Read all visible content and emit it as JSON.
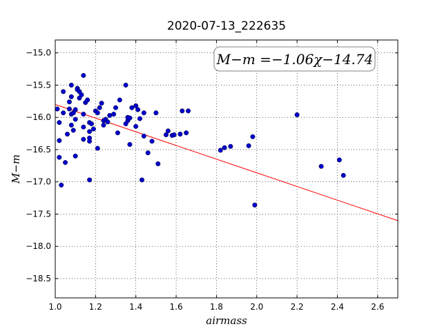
{
  "chart_data": {
    "type": "scatter",
    "title": "2020-07-13_222635",
    "xlabel": "airmass",
    "ylabel": "M−m",
    "xlim": [
      1.0,
      2.7
    ],
    "ylim": [
      -18.8,
      -14.8
    ],
    "y_inverted": true,
    "grid": true,
    "xticks": [
      1.0,
      1.2,
      1.4,
      1.6,
      1.8,
      2.0,
      2.2,
      2.4,
      2.6
    ],
    "xtick_labels": [
      "1.0",
      "1.2",
      "1.4",
      "1.6",
      "1.8",
      "2.0",
      "2.2",
      "2.4",
      "2.6"
    ],
    "yticks": [
      -15.0,
      -15.5,
      -16.0,
      -16.5,
      -17.0,
      -17.5,
      -18.0,
      -18.5
    ],
    "ytick_labels": [
      "−15.0",
      "−15.5",
      "−16.0",
      "−16.5",
      "−17.0",
      "−17.5",
      "−18.0",
      "−18.5"
    ],
    "annotation": "M−m =−1.06χ−14.74",
    "fit": {
      "slope": -1.06,
      "intercept": -14.74,
      "color": "#ff0000"
    },
    "point_color": "#0000cc",
    "points": [
      [
        1.01,
        -15.87
      ],
      [
        1.02,
        -16.08
      ],
      [
        1.02,
        -16.36
      ],
      [
        1.02,
        -16.62
      ],
      [
        1.03,
        -17.05
      ],
      [
        1.04,
        -15.6
      ],
      [
        1.04,
        -15.93
      ],
      [
        1.05,
        -16.7
      ],
      [
        1.06,
        -16.26
      ],
      [
        1.07,
        -15.76
      ],
      [
        1.07,
        -15.87
      ],
      [
        1.08,
        -15.5
      ],
      [
        1.08,
        -15.68
      ],
      [
        1.08,
        -15.95
      ],
      [
        1.08,
        -16.12
      ],
      [
        1.09,
        -16.2
      ],
      [
        1.09,
        -15.93
      ],
      [
        1.1,
        -15.88
      ],
      [
        1.1,
        -16.03
      ],
      [
        1.1,
        -16.6
      ],
      [
        1.11,
        -15.55
      ],
      [
        1.11,
        -15.57
      ],
      [
        1.12,
        -15.6
      ],
      [
        1.12,
        -15.7
      ],
      [
        1.13,
        -15.65
      ],
      [
        1.14,
        -15.35
      ],
      [
        1.14,
        -15.95
      ],
      [
        1.14,
        -16.15
      ],
      [
        1.14,
        -16.34
      ],
      [
        1.15,
        -15.77
      ],
      [
        1.16,
        -15.73
      ],
      [
        1.17,
        -16.08
      ],
      [
        1.17,
        -16.22
      ],
      [
        1.17,
        -16.32
      ],
      [
        1.17,
        -16.37
      ],
      [
        1.17,
        -16.97
      ],
      [
        1.18,
        -16.1
      ],
      [
        1.19,
        -16.18
      ],
      [
        1.2,
        -15.9
      ],
      [
        1.21,
        -15.93
      ],
      [
        1.21,
        -16.48
      ],
      [
        1.22,
        -15.85
      ],
      [
        1.23,
        -15.78
      ],
      [
        1.24,
        -16.05
      ],
      [
        1.24,
        -16.12
      ],
      [
        1.25,
        -16.03
      ],
      [
        1.26,
        -16.07
      ],
      [
        1.27,
        -15.97
      ],
      [
        1.29,
        -15.95
      ],
      [
        1.3,
        -15.85
      ],
      [
        1.31,
        -16.24
      ],
      [
        1.32,
        -15.73
      ],
      [
        1.35,
        -15.5
      ],
      [
        1.35,
        -16.1
      ],
      [
        1.36,
        -16.0
      ],
      [
        1.36,
        -16.05
      ],
      [
        1.37,
        -16.01
      ],
      [
        1.37,
        -16.42
      ],
      [
        1.38,
        -15.85
      ],
      [
        1.4,
        -15.82
      ],
      [
        1.4,
        -16.14
      ],
      [
        1.41,
        -15.88
      ],
      [
        1.42,
        -16.02
      ],
      [
        1.43,
        -16.97
      ],
      [
        1.44,
        -15.93
      ],
      [
        1.44,
        -16.29
      ],
      [
        1.46,
        -16.55
      ],
      [
        1.48,
        -16.37
      ],
      [
        1.5,
        -15.93
      ],
      [
        1.51,
        -16.72
      ],
      [
        1.55,
        -16.27
      ],
      [
        1.56,
        -16.21
      ],
      [
        1.58,
        -16.28
      ],
      [
        1.59,
        -16.27
      ],
      [
        1.62,
        -16.26
      ],
      [
        1.63,
        -15.9
      ],
      [
        1.65,
        -16.24
      ],
      [
        1.66,
        -15.9
      ],
      [
        1.82,
        -16.51
      ],
      [
        1.84,
        -16.47
      ],
      [
        1.87,
        -16.45
      ],
      [
        1.96,
        -16.44
      ],
      [
        1.98,
        -16.3
      ],
      [
        1.99,
        -17.36
      ],
      [
        2.2,
        -15.96
      ],
      [
        2.32,
        -16.76
      ],
      [
        2.41,
        -16.66
      ],
      [
        2.43,
        -16.9
      ]
    ]
  }
}
